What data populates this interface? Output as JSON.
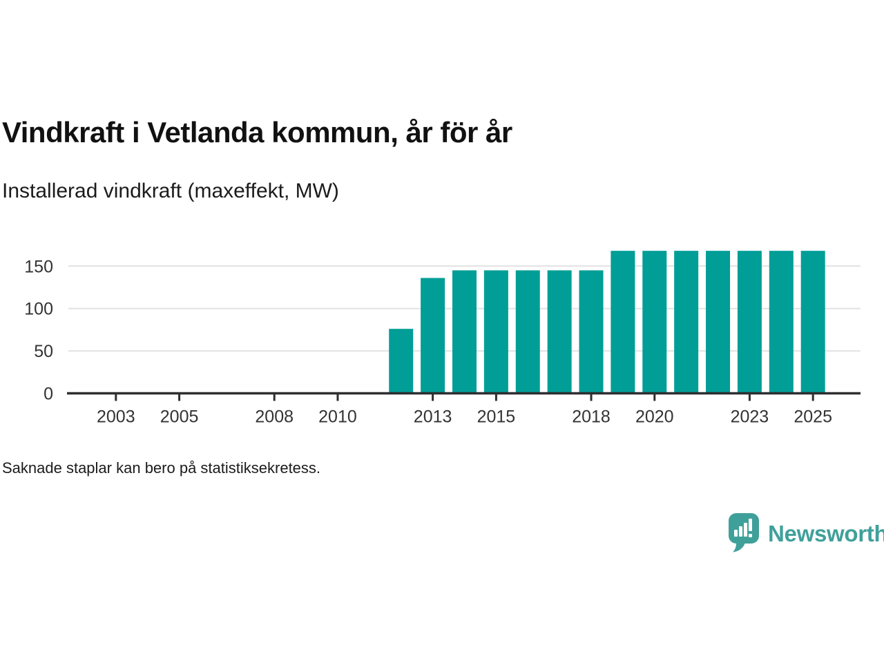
{
  "header": {
    "title": "Vindkraft i Vetlanda kommun, år för år",
    "subtitle": "Installerad vindkraft (maxeffekt, MW)"
  },
  "footer": {
    "note": "Saknade staplar kan bero på statistiksekretess.",
    "brand_name": "Newsworthy"
  },
  "colors": {
    "bar": "#009E97",
    "axis": "#2e2e2e",
    "grid": "#e2e2e2",
    "tick_text": "#333333",
    "logo": "#3FA09A"
  },
  "chart_data": {
    "type": "bar",
    "title": "Vindkraft i Vetlanda kommun, år för år",
    "subtitle": "Installerad vindkraft (maxeffekt, MW)",
    "ylabel": "Installerad vindkraft (maxeffekt, MW)",
    "xlabel": "",
    "unit": "MW",
    "x": [
      2012,
      2013,
      2014,
      2015,
      2016,
      2017,
      2018,
      2019,
      2020,
      2021,
      2022,
      2023,
      2024,
      2025
    ],
    "values": [
      76,
      136,
      145,
      145,
      145,
      145,
      145,
      168,
      168,
      168,
      168,
      168,
      168,
      168
    ],
    "x_domain": [
      2001.5,
      2026.5
    ],
    "x_ticks": [
      2003,
      2005,
      2008,
      2010,
      2013,
      2015,
      2018,
      2020,
      2023,
      2025
    ],
    "y_ticks": [
      0,
      50,
      100,
      150
    ],
    "ylim": [
      0,
      175
    ],
    "grid": "horizontal-only",
    "legend": "none",
    "note": "Saknade staplar kan bero på statistiksekretess."
  }
}
